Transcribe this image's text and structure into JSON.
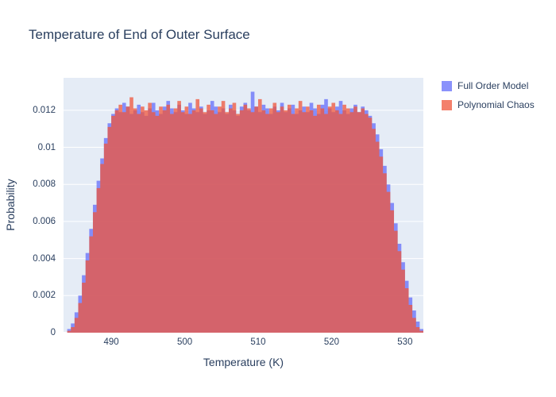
{
  "title": "Temperature of End of Outer Surface",
  "colors": {
    "title_text": "#2a3f5f",
    "axis_text": "#2a3f5f",
    "plot_bg": "#e5ecf6",
    "gridline": "#ffffff",
    "full_order_model": "#636efa",
    "polynomial_chaos": "#ef553b"
  },
  "legend": {
    "items": [
      {
        "label": "Full Order Model",
        "color": "#636efa"
      },
      {
        "label": "Polynomial Chaos",
        "color": "#ef553b"
      }
    ]
  },
  "chart_data": {
    "type": "bar",
    "subtype": "histogram-overlay",
    "title": "Temperature of End of Outer Surface",
    "xlabel": "Temperature (K)",
    "ylabel": "Probability",
    "xlim": [
      483.5,
      532.5
    ],
    "ylim": [
      0,
      0.01375
    ],
    "x_ticks": [
      490,
      500,
      510,
      520,
      530
    ],
    "y_ticks": [
      0,
      0.002,
      0.004,
      0.006,
      0.008,
      0.01,
      0.012
    ],
    "grid": "horizontal-only",
    "legend_position": "right",
    "bar_opacity": 0.75,
    "bin_start": 484.0,
    "bin_width": 0.5,
    "series": [
      {
        "name": "Full Order Model",
        "color": "#636efa",
        "values": [
          0.0002,
          0.0005,
          0.0011,
          0.002,
          0.0031,
          0.0043,
          0.0056,
          0.0069,
          0.0082,
          0.0094,
          0.0105,
          0.0113,
          0.0118,
          0.0121,
          0.0119,
          0.0124,
          0.0122,
          0.0118,
          0.012,
          0.0123,
          0.0119,
          0.0117,
          0.0121,
          0.0124,
          0.012,
          0.0118,
          0.0122,
          0.0125,
          0.0121,
          0.0119,
          0.0123,
          0.012,
          0.0118,
          0.0124,
          0.0121,
          0.0119,
          0.0122,
          0.0118,
          0.012,
          0.0125,
          0.0122,
          0.0119,
          0.0121,
          0.0118,
          0.0123,
          0.012,
          0.0117,
          0.0122,
          0.0124,
          0.012,
          0.013,
          0.0122,
          0.0119,
          0.0123,
          0.0121,
          0.0118,
          0.0122,
          0.012,
          0.0124,
          0.0119,
          0.0121,
          0.0123,
          0.0118,
          0.012,
          0.0122,
          0.0119,
          0.0124,
          0.0121,
          0.0118,
          0.0123,
          0.0126,
          0.0121,
          0.0119,
          0.0122,
          0.0125,
          0.012,
          0.0118,
          0.0121,
          0.0123,
          0.0119,
          0.0122,
          0.012,
          0.0117,
          0.0113,
          0.0107,
          0.0099,
          0.009,
          0.008,
          0.007,
          0.0059,
          0.0048,
          0.0038,
          0.0028,
          0.0019,
          0.0012,
          0.0006,
          0.0002
        ]
      },
      {
        "name": "Polynomial Chaos",
        "color": "#ef553b",
        "values": [
          0.0001,
          0.0003,
          0.0008,
          0.0016,
          0.0027,
          0.0039,
          0.0052,
          0.0065,
          0.0078,
          0.0091,
          0.0102,
          0.0111,
          0.0117,
          0.012,
          0.0123,
          0.0119,
          0.0122,
          0.0127,
          0.0121,
          0.0118,
          0.0122,
          0.012,
          0.0124,
          0.0119,
          0.0117,
          0.0122,
          0.012,
          0.0123,
          0.0118,
          0.0121,
          0.0125,
          0.0119,
          0.0122,
          0.0118,
          0.012,
          0.0126,
          0.0121,
          0.0119,
          0.0123,
          0.012,
          0.0118,
          0.0122,
          0.0125,
          0.0119,
          0.0121,
          0.0124,
          0.0118,
          0.012,
          0.0123,
          0.0121,
          0.0119,
          0.0122,
          0.0126,
          0.012,
          0.0118,
          0.0121,
          0.0124,
          0.0119,
          0.0122,
          0.012,
          0.0123,
          0.0118,
          0.0121,
          0.0125,
          0.0119,
          0.0122,
          0.012,
          0.0117,
          0.0123,
          0.0121,
          0.0118,
          0.0122,
          0.0124,
          0.012,
          0.0118,
          0.0123,
          0.0121,
          0.0119,
          0.0122,
          0.0119,
          0.0121,
          0.0118,
          0.0116,
          0.011,
          0.0103,
          0.0095,
          0.0086,
          0.0076,
          0.0066,
          0.0055,
          0.0044,
          0.0034,
          0.0024,
          0.0015,
          0.0008,
          0.0003,
          0.0001
        ]
      }
    ]
  }
}
